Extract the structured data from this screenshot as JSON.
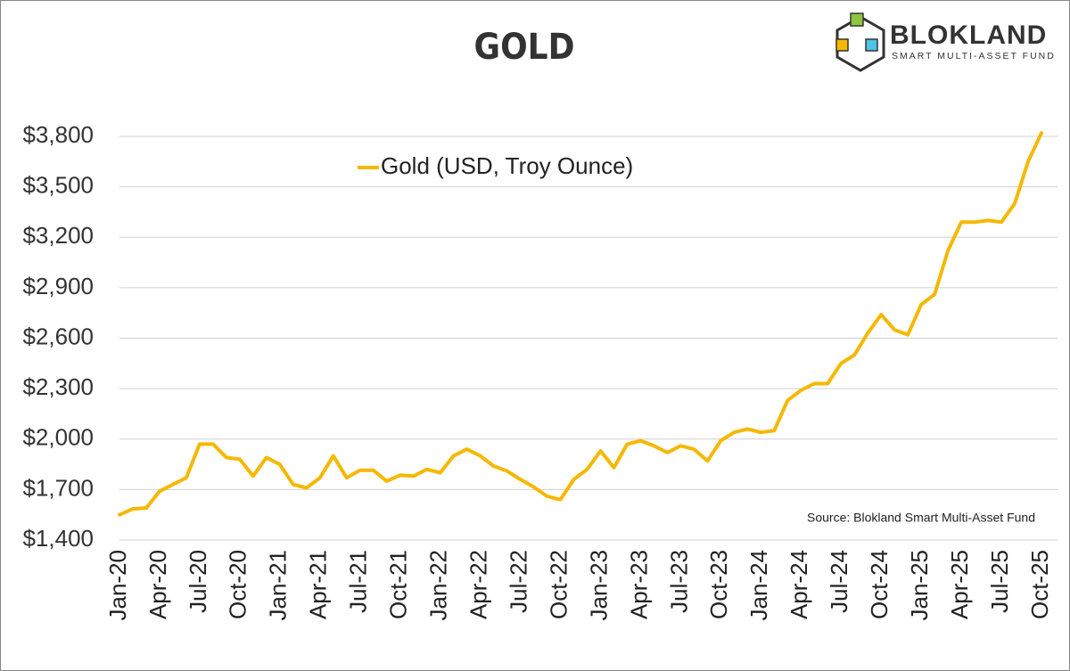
{
  "chart_data": {
    "type": "line",
    "title": "GOLD",
    "brand": "BLOKLAND",
    "brand_subtitle": "SMART MULTI-ASSET FUND",
    "source": "Source: Blokland Smart Multi-Asset Fund",
    "categories": [
      "Jan-20",
      null,
      null,
      "Apr-20",
      null,
      null,
      "Jul-20",
      null,
      null,
      "Oct-20",
      null,
      null,
      "Jan-21",
      null,
      null,
      "Apr-21",
      null,
      null,
      "Jul-21",
      null,
      null,
      "Oct-21",
      null,
      null,
      "Jan-22",
      null,
      null,
      "Apr-22",
      null,
      null,
      "Jul-22",
      null,
      null,
      "Oct-22",
      null,
      null,
      "Jan-23",
      null,
      null,
      "Apr-23",
      null,
      null,
      "Jul-23",
      null,
      null,
      "Oct-23",
      null,
      null,
      "Jan-24",
      null,
      null,
      "Apr-24",
      null,
      null,
      "Jul-24",
      null,
      null,
      "Oct-24",
      null,
      null,
      "Jan-25",
      null,
      null,
      "Apr-25",
      null,
      null,
      "Jul-25",
      null,
      null,
      "Oct-25"
    ],
    "series": [
      {
        "name": "Gold (USD, Troy Ounce)",
        "color": "#f5b800",
        "values": [
          1550,
          1585,
          1590,
          1690,
          1730,
          1770,
          1970,
          1970,
          1890,
          1880,
          1780,
          1890,
          1850,
          1730,
          1710,
          1770,
          1900,
          1770,
          1815,
          1815,
          1750,
          1785,
          1780,
          1820,
          1800,
          1900,
          1940,
          1900,
          1840,
          1810,
          1760,
          1715,
          1660,
          1640,
          1760,
          1820,
          1930,
          1830,
          1970,
          1990,
          1960,
          1920,
          1960,
          1940,
          1870,
          1990,
          2040,
          2060,
          2040,
          2050,
          2230,
          2290,
          2330,
          2330,
          2450,
          2500,
          2630,
          2740,
          2650,
          2620,
          2800,
          2860,
          3120,
          3290,
          3290,
          3300,
          3290,
          3400,
          3650,
          3820
        ]
      }
    ],
    "ylim": [
      1400,
      3800
    ],
    "yticks": [
      {
        "value": 1400,
        "label": "$1,400"
      },
      {
        "value": 1700,
        "label": "$1,700"
      },
      {
        "value": 2000,
        "label": "$2,000"
      },
      {
        "value": 2300,
        "label": "$2,300"
      },
      {
        "value": 2600,
        "label": "$2,600"
      },
      {
        "value": 2900,
        "label": "$2,900"
      },
      {
        "value": 3200,
        "label": "$3,200"
      },
      {
        "value": 3500,
        "label": "$3,500"
      },
      {
        "value": 3800,
        "label": "$3,800"
      }
    ],
    "grid": true,
    "legend": "top"
  }
}
